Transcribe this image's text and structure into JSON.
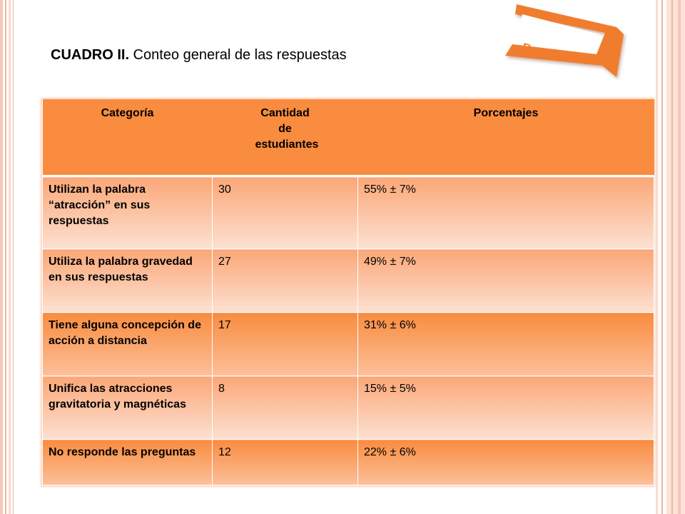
{
  "title": {
    "bold": "CUADRO II.",
    "text": " Conteo general de las respuestas"
  },
  "ribbon": {
    "label": "Resultados",
    "color": "#f07d2f"
  },
  "table": {
    "headers": [
      "Categoría",
      "Cantidad de estudiantes",
      "Porcentajes"
    ],
    "rows": [
      {
        "categoria": "Utilizan la palabra “atracción” en sus respuestas",
        "cantidad": "30",
        "porcentaje": "55% ± 7%"
      },
      {
        "categoria": "Utiliza la palabra gravedad en sus respuestas",
        "cantidad": "27",
        "porcentaje": "49% ± 7%"
      },
      {
        "categoria": "Tiene alguna concepción de acción a distancia",
        "cantidad": "17",
        "porcentaje": "31% ± 6%"
      },
      {
        "categoria": "Unifica las atracciones gravitatoria y magnéticas",
        "cantidad": "8",
        "porcentaje": "15% ± 5%"
      },
      {
        "categoria": "No responde las preguntas",
        "cantidad": "12",
        "porcentaje": "22% ± 6%"
      }
    ]
  },
  "colors": {
    "header": "#f98c3f",
    "accent": "#f07d2f"
  }
}
